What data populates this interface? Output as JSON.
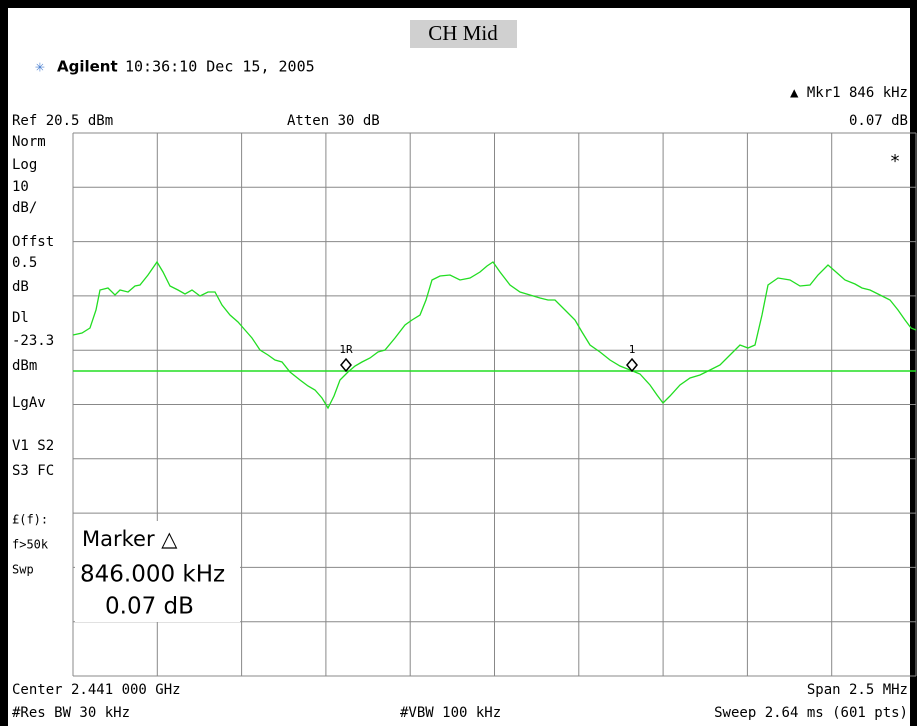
{
  "title": "CH Mid",
  "header": {
    "brand": "Agilent",
    "timestamp": "10:36:10  Dec 15, 2005",
    "marker": "▲ Mkr1  846 kHz",
    "ref": "Ref 20.5 dBm",
    "atten": "Atten 30 dB",
    "marker_value": "0.07 dB"
  },
  "side_labels": [
    "Norm",
    "Log",
    "10",
    "dB/",
    "Offst",
    "0.5",
    "dB",
    "Dl",
    "-23.3",
    "dBm",
    "LgAv",
    "V1  S2",
    "S3  FC",
    "£(f):",
    "f>50k",
    "Swp"
  ],
  "trace_markers": [
    "1R",
    "1"
  ],
  "star": "*",
  "marker_box": {
    "label": "Marker △",
    "frequency": "846.000 kHz",
    "delta": "0.07 dB"
  },
  "footer": {
    "center": "Center 2.441 000 GHz",
    "span": "Span 2.5 MHz",
    "rbw": "#Res BW 30 kHz",
    "vbw": "#VBW 100 kHz",
    "sweep": "Sweep 2.64 ms (601 pts)"
  }
}
